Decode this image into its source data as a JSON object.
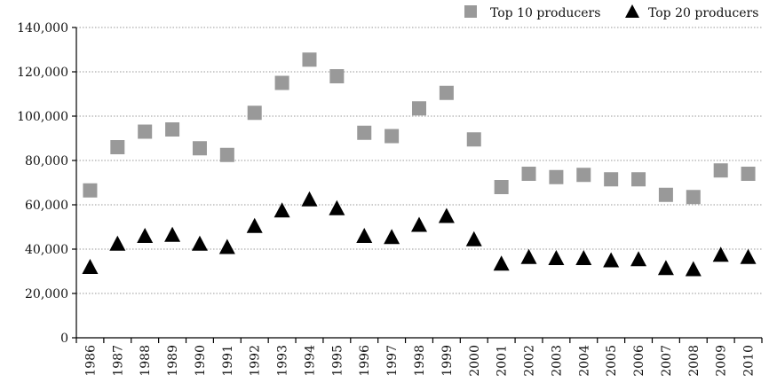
{
  "chart_data": {
    "type": "scatter",
    "title": "",
    "xlabel": "",
    "ylabel": "",
    "categories": [
      "1986",
      "1987",
      "1988",
      "1989",
      "1990",
      "1991",
      "1992",
      "1993",
      "1994",
      "1995",
      "1996",
      "1997",
      "1998",
      "1999",
      "2000",
      "2001",
      "2002",
      "2003",
      "2004",
      "2005",
      "2006",
      "2007",
      "2008",
      "2009",
      "2010"
    ],
    "ylim": [
      0,
      140000
    ],
    "yticks": [
      0,
      20000,
      40000,
      60000,
      80000,
      100000,
      120000,
      140000
    ],
    "ytick_labels": [
      "0",
      "20,000",
      "40,000",
      "60,000",
      "80,000",
      "100,000",
      "120,000",
      "140,000"
    ],
    "grid": "horizontal dotted",
    "legend_position": "top-right",
    "series": [
      {
        "name": "Top 10 producers",
        "marker": "square",
        "color": "#999999",
        "values": [
          66500,
          86000,
          93000,
          94000,
          85500,
          82500,
          101500,
          115000,
          125500,
          118000,
          92500,
          91000,
          103500,
          110500,
          89500,
          68000,
          74000,
          72500,
          73500,
          71500,
          71500,
          64500,
          63500,
          75500,
          74000
        ]
      },
      {
        "name": "Top 20 producers",
        "marker": "triangle",
        "color": "#000000",
        "values": [
          32000,
          42500,
          46000,
          46500,
          42500,
          41000,
          50500,
          57500,
          62500,
          58500,
          46000,
          45500,
          51000,
          55000,
          44500,
          33500,
          36500,
          36000,
          36000,
          35000,
          35500,
          31500,
          31000,
          37500,
          36500
        ]
      }
    ]
  }
}
